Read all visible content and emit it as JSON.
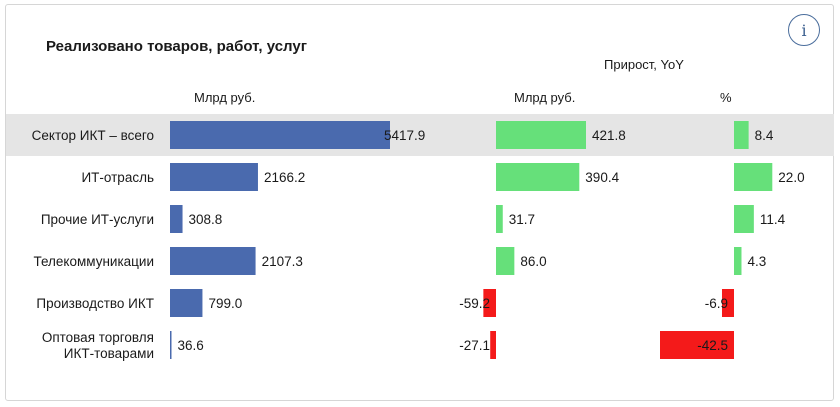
{
  "header": {
    "title": "Реализовано товаров, работ, услуг",
    "info_icon": "info-icon",
    "growth_header": "Прирост, YoY",
    "col_value_unit": "Млрд руб.",
    "col_growth_unit": "Млрд руб.",
    "col_growth_pct": "%"
  },
  "colors": {
    "value_bar": "#4a6aae",
    "positive_bar": "#66e07a",
    "negative_bar": "#f41a1a",
    "highlight_row": "#e5e5e5"
  },
  "chart_data": {
    "type": "bar",
    "categories": [
      [
        "Сектор ИКТ – всего"
      ],
      [
        "ИТ-отрасль"
      ],
      [
        "Прочие ИТ-услуги"
      ],
      [
        "Телекоммуникации"
      ],
      [
        "Производство ИКТ"
      ],
      [
        "Оптовая торговля",
        "ИКТ-товарами"
      ]
    ],
    "highlighted_category": 0,
    "series": [
      {
        "name": "Млрд руб.",
        "values": [
          5417.9,
          2166.2,
          308.8,
          2107.3,
          799.0,
          36.6
        ]
      },
      {
        "name": "Прирост, YoY — Млрд руб.",
        "values": [
          421.8,
          390.4,
          31.7,
          86.0,
          -59.2,
          -27.1
        ]
      },
      {
        "name": "Прирост, YoY — %",
        "values": [
          8.4,
          22.0,
          11.4,
          4.3,
          -6.9,
          -42.5
        ]
      }
    ]
  }
}
